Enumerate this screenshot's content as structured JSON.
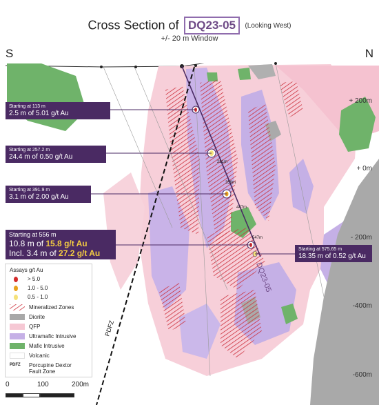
{
  "title": {
    "prefix": "Cross Section of",
    "hole": "DQ23-05",
    "direction": "(Looking West)"
  },
  "subtitle": "+/- 20 m Window",
  "compass": {
    "left": "S",
    "right": "N"
  },
  "elevations": [
    "+ 200m",
    "+ 0m",
    "- 200m",
    "-400m",
    "-600m"
  ],
  "depth_ticks": [
    "281m",
    "359m",
    "447m",
    "547m"
  ],
  "hole_label": "DQ23-05",
  "fault_label": "PDFZ",
  "callouts": {
    "c1": {
      "start": "Starting at 113 m",
      "line": "2.5 m of 5.01 g/t Au"
    },
    "c2": {
      "start": "Starting at 257.2 m",
      "line": "24.4 m of 0.50 g/t Au"
    },
    "c3": {
      "start": "Starting at 391.9 m",
      "line": "3.1 m of 2.00 g/t Au"
    },
    "c4": {
      "start": "Starting at 556 m",
      "l1a": "10.8 m of ",
      "l1b": "15.8 g/t Au",
      "l2a": "Incl. 3.4 m of ",
      "l2b": "27.2 g/t Au"
    },
    "c5": {
      "start": "Starting at 575.65 m",
      "line": "18.35 m of 0.52 g/t Au"
    }
  },
  "legend": {
    "heading": "Assays g/t Au",
    "assays": [
      {
        "label": "> 5.0",
        "color": "#d42b2b"
      },
      {
        "label": "1.0 - 5.0",
        "color": "#e8a21c"
      },
      {
        "label": "0.5 - 1.0",
        "color": "#f5e27a"
      }
    ],
    "units": [
      {
        "label": "Mineralized Zones",
        "kind": "hatch",
        "color": "#c8343c"
      },
      {
        "label": "Diorite",
        "kind": "fill",
        "color": "#a8a8a8"
      },
      {
        "label": "QFP",
        "kind": "fill",
        "color": "#f6c8d4"
      },
      {
        "label": "Ultramafic Intrusive",
        "kind": "fill",
        "color": "#c5b0e6"
      },
      {
        "label": "Mafic Intrusive",
        "kind": "fill",
        "color": "#6fb36a"
      },
      {
        "label": "Volcanic",
        "kind": "fill",
        "color": "#ffffff"
      }
    ],
    "fault_abbr": "PDFZ",
    "fault_name": "Porcupine Dextor Fault Zone"
  },
  "scale": {
    "labels": [
      "0",
      "100",
      "200m"
    ]
  },
  "colors": {
    "accent": "#4a2a63",
    "highlight": "#f2cb42",
    "hole": "#6e4a86"
  }
}
